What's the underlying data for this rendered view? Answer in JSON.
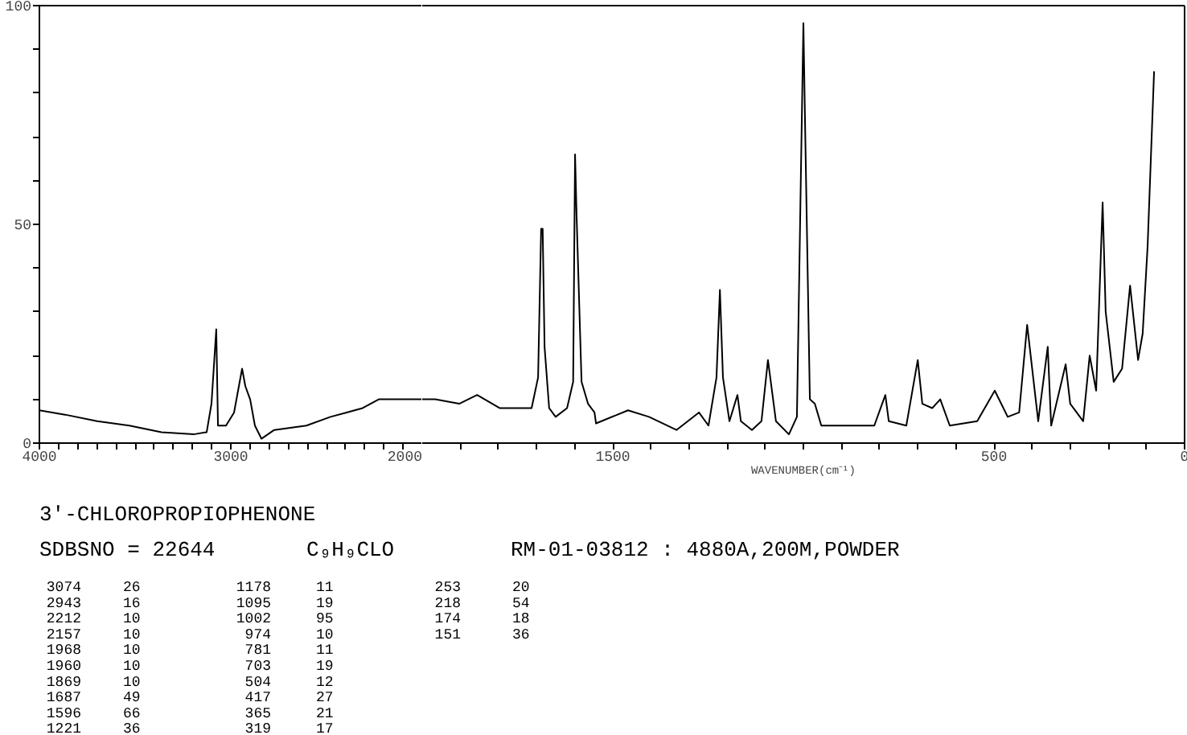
{
  "chart_data": [
    {
      "type": "line",
      "title": "3'-CHLOROPROPIOPHENONE",
      "subtitle": "SDBSNO = 22644",
      "annotations": [
        "C₉H₉CLO",
        "RM-01-03812 : 4880A,200M,POWDER",
        "3074 26",
        "2943 16",
        "2212 10",
        "2157 10",
        "1968 10",
        "1960 10",
        "1869 10",
        "1687 49",
        "1596 66",
        "1221 36",
        "1178 11",
        "1095 19",
        "1002 95",
        "974 10",
        "781 11",
        "703 19",
        "504 12",
        "417 27",
        "365 21",
        "319 17",
        "253 20",
        "218 54",
        "174 18",
        "151 36"
      ],
      "x": [
        4000,
        3866,
        3698,
        3530,
        3362,
        3194,
        3126,
        3101,
        3076,
        3067,
        3025,
        2983,
        2941,
        2924,
        2899,
        2874,
        2840,
        2773,
        2605,
        2479,
        2395,
        2311,
        2227,
        2101,
        2000
      ],
      "series": [
        {
          "color": "#000000",
          "values": [
            7.5,
            6.5,
            5,
            4,
            2.5,
            2,
            2.5,
            9,
            26,
            4,
            4,
            7,
            17,
            13,
            10,
            4,
            1,
            3,
            4,
            6,
            7,
            8,
            10,
            10,
            10
          ]
        }
      ],
      "xlim": [
        4000,
        2000
      ],
      "ylim": [
        0,
        100
      ],
      "xticks": [
        4000,
        {
          "value": 3900,
          "label": null
        },
        {
          "value": 3800,
          "label": null
        },
        {
          "value": 3700,
          "label": null
        },
        {
          "value": 3600,
          "label": null
        },
        {
          "value": 3500,
          "label": null
        },
        {
          "value": 3400,
          "label": null
        },
        {
          "value": 3300,
          "label": null
        },
        {
          "value": 3200,
          "label": null
        },
        {
          "value": 3100,
          "label": null
        },
        3000,
        {
          "value": 2900,
          "label": null
        },
        {
          "value": 2800,
          "label": null
        },
        {
          "value": 2700,
          "label": null
        },
        {
          "value": 2600,
          "label": null
        },
        {
          "value": 2500,
          "label": null
        },
        {
          "value": 2400,
          "label": null
        },
        {
          "value": 2300,
          "label": null
        },
        {
          "value": 2200,
          "label": null
        },
        {
          "value": 2100,
          "label": null
        },
        2000
      ],
      "yticks": [
        0,
        {
          "value": 10,
          "label": null
        },
        {
          "value": 20,
          "label": null
        },
        {
          "value": 30,
          "label": null
        },
        {
          "value": 40,
          "label": null
        },
        50,
        {
          "value": 60,
          "label": null
        },
        {
          "value": 70,
          "label": null
        },
        {
          "value": 80,
          "label": null
        },
        {
          "value": 90,
          "label": null
        },
        100
      ],
      "grid": false
    },
    {
      "type": "line",
      "xlabel": "WAVENUMBER(cm⁻¹)",
      "x": [
        2000,
        1966,
        1903,
        1856,
        1797,
        1713,
        1696,
        1688,
        1684,
        1679,
        1667,
        1650,
        1620,
        1604,
        1599,
        1595,
        1582,
        1565,
        1548,
        1544,
        1460,
        1405,
        1333,
        1274,
        1249,
        1228,
        1219,
        1211,
        1194,
        1173,
        1164,
        1135,
        1110,
        1093,
        1072,
        1038,
        1017,
        1000,
        996,
        983,
        970,
        953,
        882,
        814,
        785,
        776,
        730,
        700,
        688,
        662,
        641,
        616,
        544,
        498,
        464,
        434,
        413,
        384,
        359,
        350,
        312,
        300,
        266,
        249,
        232,
        215,
        207,
        186,
        164,
        143,
        122,
        110,
        97,
        80
      ],
      "series": [
        {
          "color": "#000000",
          "values": [
            10,
            10,
            9,
            11,
            8,
            8,
            15,
            49,
            49,
            22,
            8,
            6,
            8,
            14,
            66,
            52,
            14,
            9,
            7,
            4.5,
            7.5,
            6,
            3,
            7,
            4,
            15,
            35,
            15,
            5,
            11,
            5,
            3,
            5,
            19,
            5,
            2,
            6,
            96,
            75,
            10,
            9,
            4,
            4,
            4,
            11,
            5,
            4,
            19,
            9,
            8,
            10,
            4,
            5,
            12,
            6,
            7,
            27,
            5,
            22,
            4,
            18,
            9,
            5,
            20,
            12,
            55,
            30,
            14,
            17,
            36,
            19,
            25,
            45,
            85
          ]
        }
      ],
      "xlim": [
        2000,
        0
      ],
      "ylim": [
        0,
        100
      ],
      "xticks": [
        {
          "value": 1900,
          "label": null
        },
        {
          "value": 1800,
          "label": null
        },
        {
          "value": 1700,
          "label": null
        },
        {
          "value": 1600,
          "label": null
        },
        1500,
        {
          "value": 1400,
          "label": null
        },
        {
          "value": 1300,
          "label": null
        },
        {
          "value": 1200,
          "label": null
        },
        {
          "value": 1100,
          "label": null
        },
        {
          "value": 1000,
          "label": null
        },
        {
          "value": 900,
          "label": null
        },
        {
          "value": 800,
          "label": null
        },
        {
          "value": 700,
          "label": null
        },
        {
          "value": 600,
          "label": null
        },
        500,
        {
          "value": 400,
          "label": null
        },
        {
          "value": 300,
          "label": null
        },
        {
          "value": 200,
          "label": null
        },
        {
          "value": 100,
          "label": null
        },
        0
      ],
      "tick_labels": "x",
      "grid": false
    }
  ]
}
